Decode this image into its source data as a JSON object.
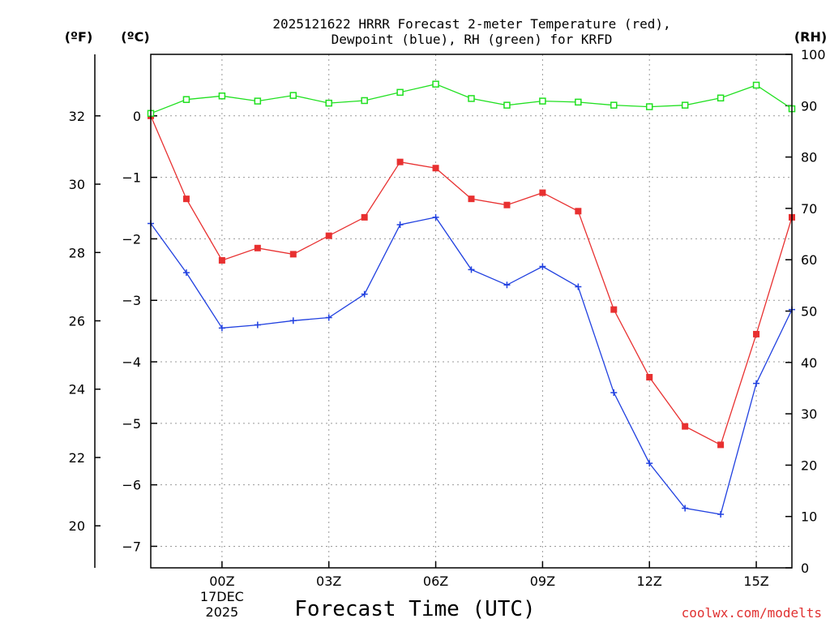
{
  "chart_data": {
    "type": "line",
    "title_line1": "2025121622 HRRR Forecast 2-meter Temperature (red),",
    "title_line2": "Dewpoint (blue), RH (green) for KRFD",
    "units": {
      "fahrenheit": "(ºF)",
      "celsius": "(ºC)",
      "rh": "(RH)"
    },
    "xlabel": "Forecast Time (UTC)",
    "credit": "coolwx.com/modelts",
    "x_hours": [
      -2,
      -1,
      0,
      1,
      2,
      3,
      4,
      5,
      6,
      7,
      8,
      9,
      10,
      11,
      12,
      13,
      14,
      15,
      16
    ],
    "xlim": [
      -2,
      16
    ],
    "x_ticks": [
      {
        "hour": 0,
        "label": "00Z",
        "date1": "17DEC",
        "date2": "2025"
      },
      {
        "hour": 3,
        "label": "03Z"
      },
      {
        "hour": 6,
        "label": "06Z"
      },
      {
        "hour": 9,
        "label": "09Z"
      },
      {
        "hour": 12,
        "label": "12Z"
      },
      {
        "hour": 15,
        "label": "15Z"
      }
    ],
    "celsius_axis": {
      "lim": [
        -7.35,
        1.0
      ],
      "ticks": [
        "0",
        "−1",
        "−2",
        "−3",
        "−4",
        "−5",
        "−6",
        "−7"
      ],
      "tick_values": [
        0,
        -1,
        -2,
        -3,
        -4,
        -5,
        -6,
        -7
      ]
    },
    "fahrenheit_axis": {
      "ticks": [
        "32",
        "30",
        "28",
        "26",
        "24",
        "22",
        "20"
      ],
      "tick_values": [
        32,
        30,
        28,
        26,
        24,
        22,
        20
      ]
    },
    "rh_axis": {
      "lim": [
        0,
        100
      ],
      "ticks": [
        "100",
        "90",
        "80",
        "70",
        "60",
        "50",
        "40",
        "30",
        "20",
        "10",
        "0"
      ],
      "tick_values": [
        100,
        90,
        80,
        70,
        60,
        50,
        40,
        30,
        20,
        10,
        0
      ]
    },
    "series": [
      {
        "name": "2-meter Temperature",
        "axis": "celsius",
        "color": "#e83030",
        "marker": "filled-square",
        "values": [
          0.0,
          -1.35,
          -2.35,
          -2.15,
          -2.25,
          -1.95,
          -1.65,
          -0.75,
          -0.85,
          -1.35,
          -1.45,
          -1.25,
          -1.55,
          -3.15,
          -4.25,
          -5.05,
          -5.35,
          -3.55,
          -1.65
        ]
      },
      {
        "name": "Dewpoint",
        "axis": "celsius",
        "color": "#2040e0",
        "marker": "plus",
        "values": [
          -1.75,
          -2.55,
          -3.45,
          -3.4,
          -3.33,
          -3.28,
          -2.9,
          -1.77,
          -1.65,
          -2.5,
          -2.75,
          -2.45,
          -2.78,
          -4.5,
          -5.65,
          -6.38,
          -6.48,
          -4.35,
          -3.15
        ]
      },
      {
        "name": "RH",
        "axis": "rh",
        "color": "#20e020",
        "marker": "open-square",
        "values": [
          88.5,
          91.2,
          91.9,
          90.9,
          92.0,
          90.5,
          91.0,
          92.6,
          94.2,
          91.4,
          90.1,
          90.9,
          90.7,
          90.1,
          89.8,
          90.1,
          91.5,
          94.0,
          89.4
        ]
      }
    ]
  }
}
